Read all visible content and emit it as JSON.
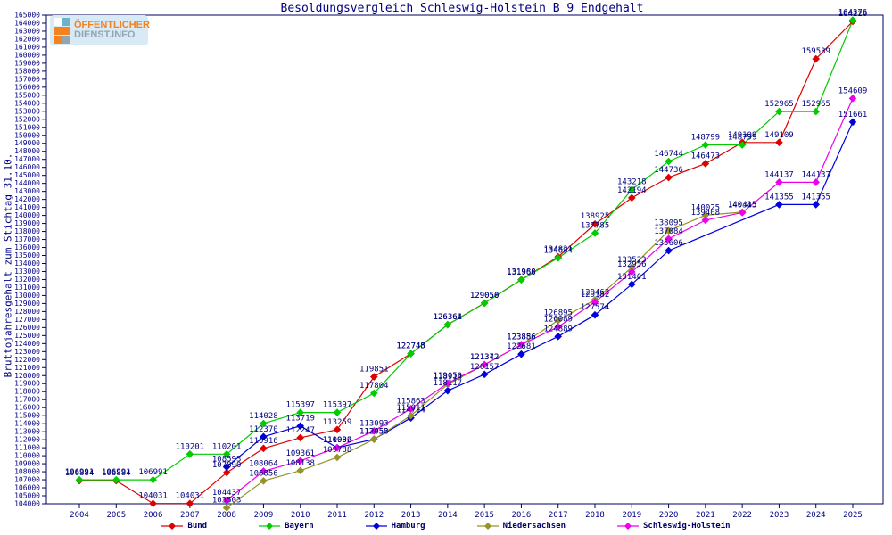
{
  "logo": {
    "line1": "ÖFFENTLICHER",
    "line2": "DIENST.INFO"
  },
  "title": "Besoldungsvergleich Schleswig-Holstein B 9 Endgehalt",
  "y_axis_title": "Bruttojahresgehalt zum Stichtag 31.10.",
  "colors": {
    "text": "#000080",
    "axis": "#000060",
    "logo_orange": "#f58220",
    "logo_gray": "#93a5b1",
    "logo_bg": "#d9eaf7"
  },
  "chart_data": {
    "type": "line",
    "title": "Besoldungsvergleich Schleswig-Holstein B 9 Endgehalt",
    "xlabel": "",
    "ylabel": "Bruttojahresgehalt zum Stichtag 31.10.",
    "ylim": [
      104000,
      165000
    ],
    "ytick_step": 1000,
    "grid": false,
    "legend_position": "bottom",
    "x": [
      2004,
      2005,
      2006,
      2007,
      2008,
      2009,
      2010,
      2011,
      2012,
      2013,
      2014,
      2015,
      2016,
      2017,
      2018,
      2019,
      2020,
      2021,
      2022,
      2023,
      2024,
      2025
    ],
    "series": [
      {
        "name": "Bund",
        "color": "#dd0000",
        "values": [
          106884,
          106884,
          104031,
          104031,
          107890,
          110916,
          112247,
          113259,
          119851,
          122748,
          126364,
          129056,
          131988,
          134821,
          138925,
          142194,
          144736,
          146473,
          149109,
          149109,
          159539,
          164226
        ]
      },
      {
        "name": "Bayern",
        "color": "#00cc00",
        "values": [
          106991,
          106991,
          106991,
          110201,
          110201,
          114028,
          115397,
          115397,
          117804,
          122745,
          126361,
          129050,
          131966,
          134694,
          137785,
          143218,
          146744,
          148799,
          148799,
          152965,
          152965,
          164376
        ]
      },
      {
        "name": "Hamburg",
        "color": "#0000dd",
        "values": [
          null,
          null,
          null,
          null,
          108593,
          112370,
          113719,
          111002,
          112058,
          114714,
          118117,
          120157,
          122681,
          124889,
          127574,
          131401,
          135606,
          null,
          null,
          141355,
          141355,
          151661
        ]
      },
      {
        "name": "Niedersachsen",
        "color": "#949428",
        "values": [
          null,
          null,
          null,
          null,
          103503,
          106856,
          108138,
          109788,
          112053,
          115011,
          118914,
          121342,
          123886,
          126895,
          129463,
          133523,
          138095,
          140025,
          140415,
          null,
          null,
          null
        ]
      },
      {
        "name": "Schleswig-Holstein",
        "color": "#ee00ee",
        "values": [
          null,
          null,
          null,
          null,
          104437,
          108064,
          109361,
          110986,
          113093,
          115863,
          119050,
          121372,
          123856,
          126089,
          129182,
          132956,
          137084,
          139408,
          140345,
          144137,
          144137,
          154609
        ]
      }
    ]
  }
}
